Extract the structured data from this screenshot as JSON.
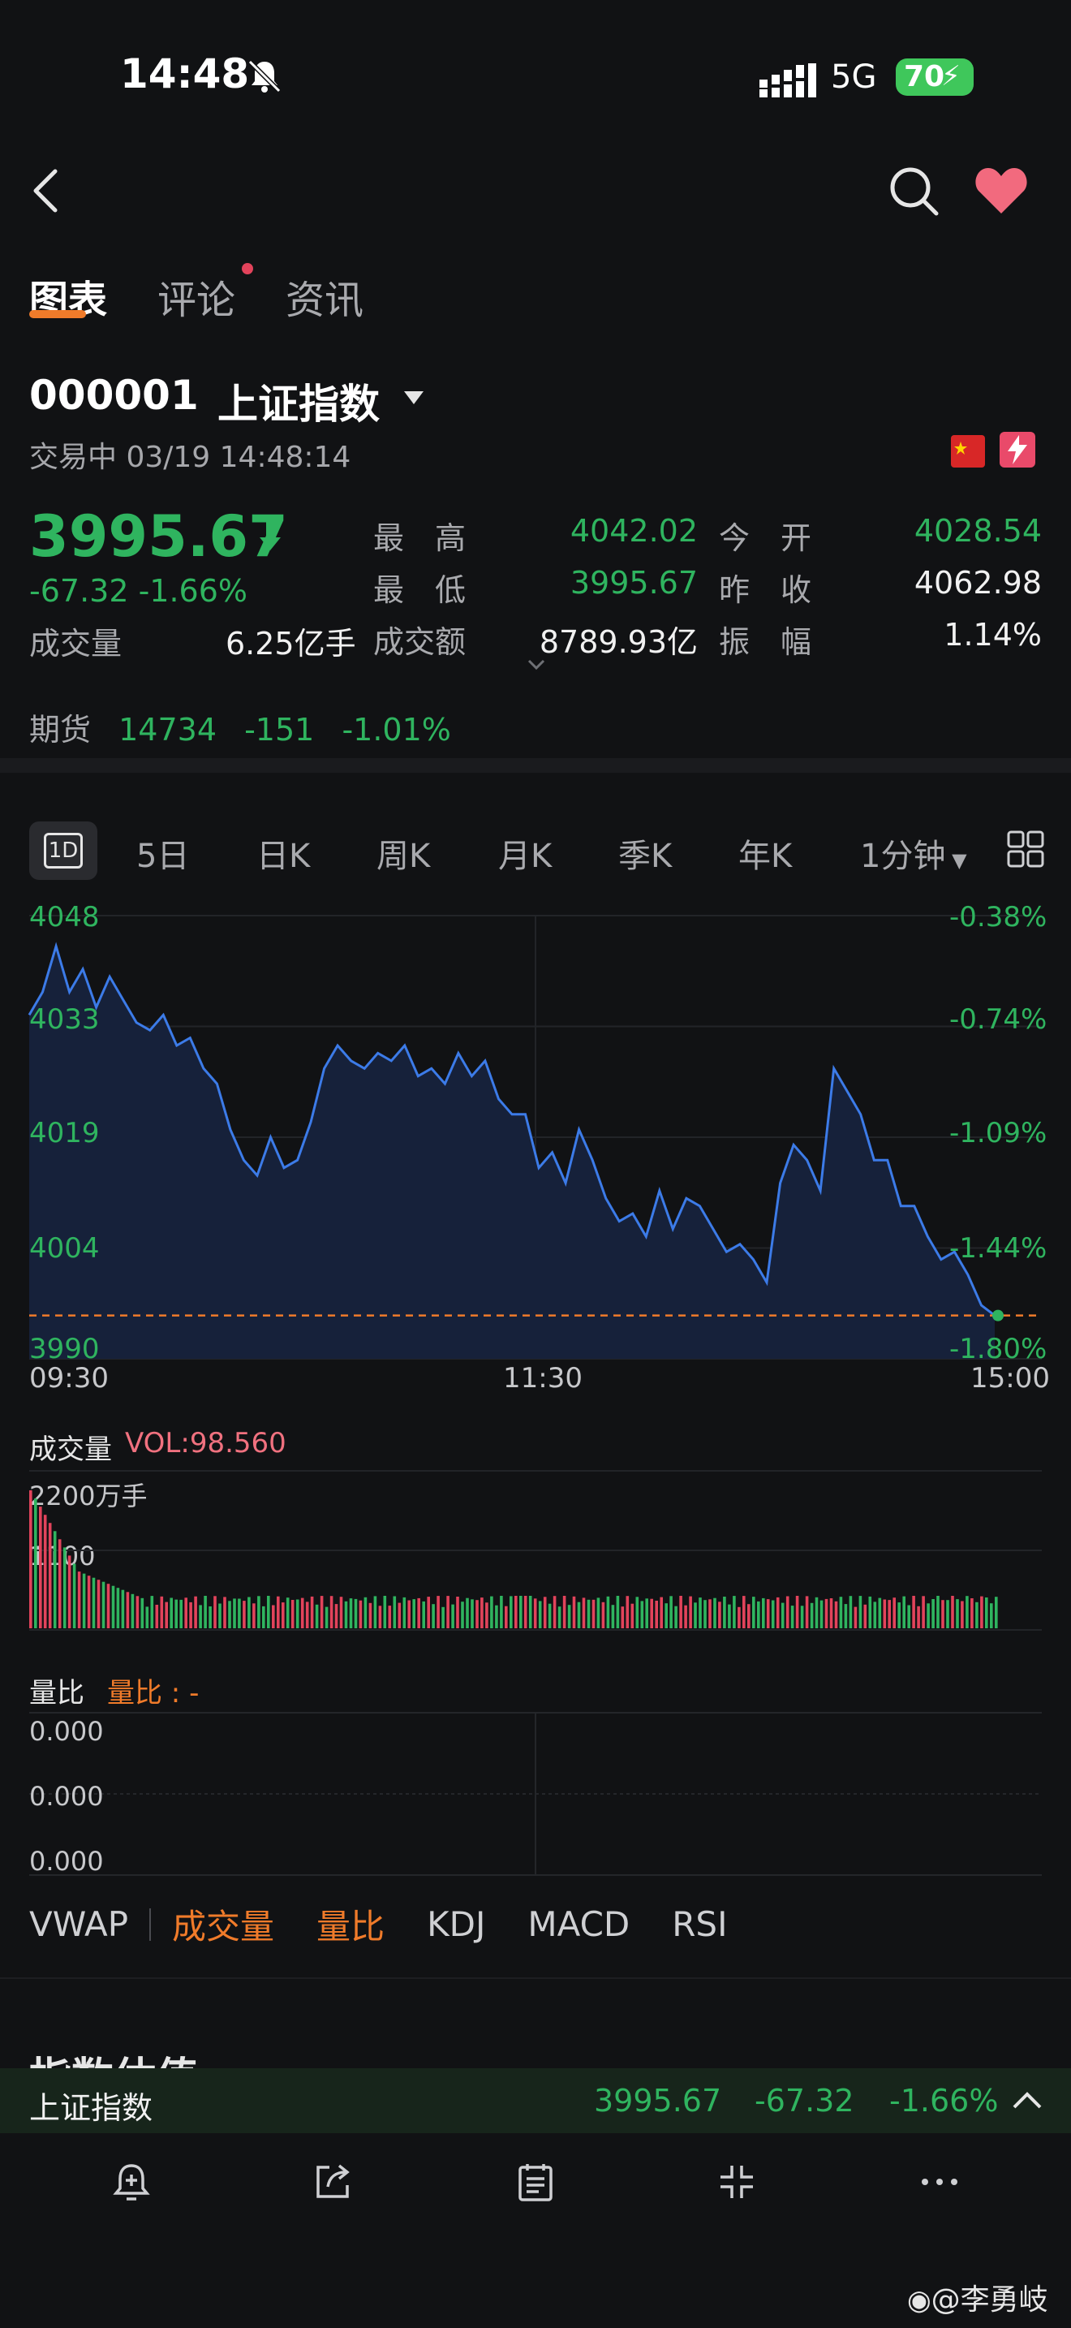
{
  "status_bar": {
    "time": "14:48",
    "network": "5G",
    "battery": "70"
  },
  "tabs": [
    {
      "label": "图表"
    },
    {
      "label": "评论"
    },
    {
      "label": "资讯"
    }
  ],
  "stock": {
    "code": "000001",
    "name": "上证指数",
    "trade_status": "交易中 03/19 14:48:14",
    "price": "3995.67",
    "change": "-67.32  -1.66%",
    "volume_label": "成交量",
    "volume_value": "6.25亿手",
    "stats": [
      {
        "label": "最　高",
        "value": "4042.02",
        "color": "green"
      },
      {
        "label": "最　低",
        "value": "3995.67",
        "color": "green"
      },
      {
        "label": "成交额",
        "value": "8789.93亿",
        "color": "white"
      },
      {
        "label": "今　开",
        "value": "4028.54",
        "color": "green"
      },
      {
        "label": "昨　收",
        "value": "4062.98",
        "color": "white"
      },
      {
        "label": "振　幅",
        "value": "1.14%",
        "color": "white"
      }
    ],
    "futures": {
      "label": "期货",
      "value": "14734",
      "change": "-151",
      "pct": "-1.01%"
    }
  },
  "period_tabs": [
    {
      "label": "1D"
    },
    {
      "label": "5日"
    },
    {
      "label": "日K"
    },
    {
      "label": "周K"
    },
    {
      "label": "月K"
    },
    {
      "label": "季K"
    },
    {
      "label": "年K"
    },
    {
      "label": "1分钟"
    }
  ],
  "chart_data": {
    "type": "area",
    "y_ticks": [
      "4048",
      "4033",
      "4019",
      "4004",
      "3990"
    ],
    "pct_ticks": [
      "-0.38%",
      "-0.74%",
      "-1.09%",
      "-1.44%",
      "-1.80%"
    ],
    "x_ticks": [
      "09:30",
      "11:30",
      "15:00"
    ],
    "ylim": [
      3990,
      4048
    ],
    "reference_line": 3995.67,
    "values": [
      4035,
      4038,
      4044,
      4038,
      4041,
      4036,
      4040,
      4037,
      4034,
      4033,
      4035,
      4031,
      4032,
      4028,
      4026,
      4020,
      4016,
      4014,
      4019,
      4015,
      4016,
      4021,
      4028,
      4031,
      4029,
      4028,
      4030,
      4029,
      4031,
      4027,
      4028,
      4026,
      4030,
      4027,
      4029,
      4024,
      4022,
      4022,
      4015,
      4017,
      4013,
      4020,
      4016,
      4011,
      4008,
      4009,
      4006,
      4012,
      4007,
      4011,
      4010,
      4007,
      4004,
      4005,
      4003,
      4000,
      4013,
      4018,
      4016,
      4012,
      4028,
      4025,
      4022,
      4016,
      4016,
      4010,
      4010,
      4006,
      4003,
      4004,
      4001,
      3997,
      3995.67
    ],
    "highlight_color": "#3c7be8",
    "up_color": "#e2435b",
    "down_color": "#2fb45f"
  },
  "volume": {
    "label": "成交量",
    "vol_text": "VOL:98.560",
    "ticks": [
      "2200万手",
      "1100"
    ]
  },
  "ratio": {
    "label": "量比",
    "value_text": "量比 : -",
    "ticks": [
      "0.000",
      "0.000",
      "0.000"
    ]
  },
  "indicator_tabs": [
    {
      "label": "VWAP",
      "color": "#cfd0d3"
    },
    {
      "label": "成交量",
      "color": "#f07b2a"
    },
    {
      "label": "量比",
      "color": "#f07b2a"
    },
    {
      "label": "KDJ",
      "color": "#cfd0d3"
    },
    {
      "label": "MACD",
      "color": "#cfd0d3"
    },
    {
      "label": "RSI",
      "color": "#cfd0d3"
    }
  ],
  "partial_section_title": "指数估值",
  "bottom_ticker": {
    "name": "上证指数",
    "price": "3995.67",
    "change": "-67.32",
    "pct": "-1.66%"
  },
  "toolbar": [
    {
      "icon": "alarm-add-icon"
    },
    {
      "icon": "share-icon"
    },
    {
      "icon": "note-icon"
    },
    {
      "icon": "collapse-icon"
    },
    {
      "icon": "more-icon"
    }
  ],
  "watermark": "@李勇岐"
}
